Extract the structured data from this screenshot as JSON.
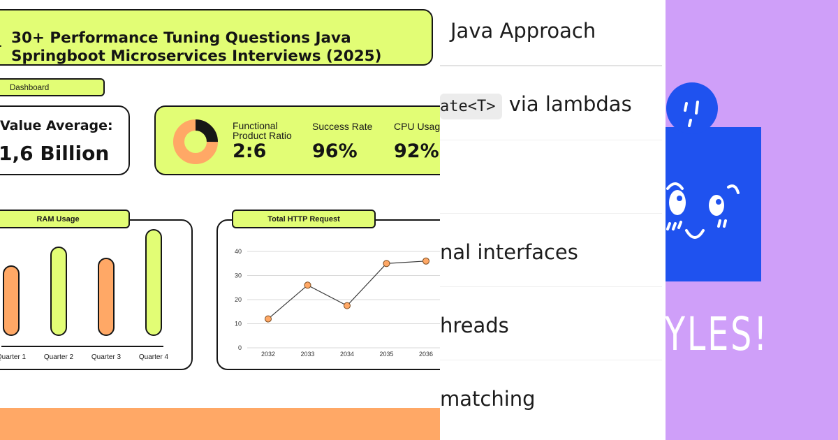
{
  "infographic": {
    "title_line1": "30+ Performance Tuning Questions Java",
    "title_line2": "Springboot Microservices Interviews (2025)",
    "dashboard_tag": "Dashboard",
    "value_card": {
      "label": "Value Average:",
      "value": "1,6 Billion"
    },
    "stats": [
      {
        "label_line1": "Functional",
        "label_line2": "Product Ratio",
        "value": "2:6"
      },
      {
        "label_line1": "Success Rate",
        "label_line2": "",
        "value": "96%"
      },
      {
        "label_line1": "CPU Usag",
        "label_line2": "",
        "value": "92%"
      }
    ],
    "donut": {
      "fraction": 0.25,
      "fill_color": "#161616",
      "ring_color": "#ffa866"
    },
    "colors": {
      "accent_green": "#e2fd75",
      "accent_orange": "#ffa866",
      "ink": "#161616"
    }
  },
  "chart_data": [
    {
      "type": "bar",
      "title": "RAM Usage",
      "categories": [
        "Quarter 1",
        "Quarter 2",
        "Quarter 3",
        "Quarter 4"
      ],
      "values": [
        56,
        71,
        62,
        85
      ],
      "ylim": [
        0,
        100
      ],
      "bar_colors": [
        "#ffa866",
        "#e2fd75",
        "#ffa866",
        "#e2fd75"
      ]
    },
    {
      "type": "line",
      "title": "Total  HTTP  Request",
      "x": [
        "2032",
        "2033",
        "2034",
        "2035",
        "2036"
      ],
      "y": [
        12,
        26,
        17.5,
        35,
        36
      ],
      "yticks": [
        "0",
        "10",
        "20",
        "30",
        "40"
      ],
      "ylim": [
        0,
        40
      ],
      "grid": true,
      "marker_color": "#ffa866"
    }
  ],
  "article": {
    "heading": "Java Approach",
    "code": "ate<T>",
    "line2_suffix": " via lambdas",
    "line3": "nal interfaces",
    "line4": "hreads",
    "line5": "matching"
  },
  "cartoon": {
    "text": "YLES!",
    "shape_color": "#1f52ef"
  }
}
